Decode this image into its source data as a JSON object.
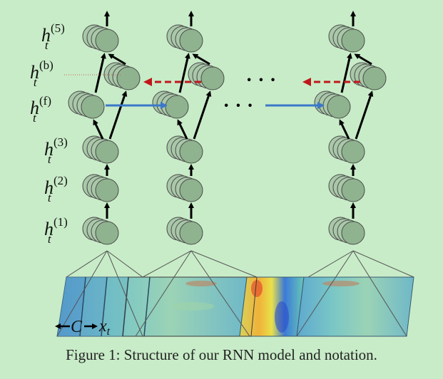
{
  "labels": {
    "h5": {
      "base": "h",
      "sub": "t",
      "sup": "(5)"
    },
    "hb": {
      "base": "h",
      "sub": "t",
      "sup": "(b)"
    },
    "hf": {
      "base": "h",
      "sub": "t",
      "sup": "(f)"
    },
    "h3": {
      "base": "h",
      "sub": "t",
      "sup": "(3)"
    },
    "h2": {
      "base": "h",
      "sub": "t",
      "sup": "(2)"
    },
    "h1": {
      "base": "h",
      "sub": "t",
      "sup": "(1)"
    },
    "c": "C",
    "x": {
      "base": "x",
      "sub": "t"
    }
  },
  "ellipsis_top": "· · ·",
  "ellipsis_mid": "· · ·",
  "caption": "Figure 1: Structure of our RNN model and notation.",
  "colors": {
    "background": "#c8ecc8",
    "neuron": "#8fb38f",
    "forward_arrow": "#3a78c9",
    "backward_arrow": "#c0171a",
    "arrow": "#000000"
  }
}
